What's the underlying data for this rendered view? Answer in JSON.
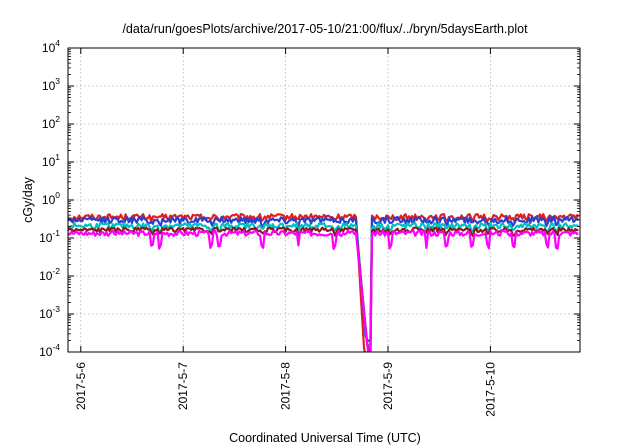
{
  "chart_data": {
    "type": "line",
    "title": "/data/run/goesPlots/archive/2017-05-10/21:00/flux/../bryn/5daysEarth.plot",
    "xlabel": "Coordinated Universal Time (UTC)",
    "ylabel": "cGy/day",
    "y_scale": "log",
    "ylim": [
      0.0001,
      10000
    ],
    "y_ticks": [
      {
        "value": 0.0001,
        "base": "10",
        "exp": "-4"
      },
      {
        "value": 0.001,
        "base": "10",
        "exp": "-3"
      },
      {
        "value": 0.01,
        "base": "10",
        "exp": "-2"
      },
      {
        "value": 0.1,
        "base": "10",
        "exp": "-1"
      },
      {
        "value": 1,
        "base": "10",
        "exp": "0"
      },
      {
        "value": 10,
        "base": "10",
        "exp": "1"
      },
      {
        "value": 100,
        "base": "10",
        "exp": "2"
      },
      {
        "value": 1000,
        "base": "10",
        "exp": "3"
      },
      {
        "value": 10000,
        "base": "10",
        "exp": "4"
      }
    ],
    "xlim": [
      "2017-05-05T21:00",
      "2017-05-10T21:00"
    ],
    "x_ticks": [
      {
        "value": "2017-05-06T00:00",
        "label": "2017-5-6"
      },
      {
        "value": "2017-05-07T00:00",
        "label": "2017-5-7"
      },
      {
        "value": "2017-05-08T00:00",
        "label": "2017-5-8"
      },
      {
        "value": "2017-05-09T00:00",
        "label": "2017-5-9"
      },
      {
        "value": "2017-05-10T00:00",
        "label": "2017-5-10"
      }
    ],
    "grid": true,
    "dropout": {
      "start": "2017-05-08T16:30",
      "end": "2017-05-08T20:00",
      "floor": 0.0001
    },
    "series": [
      {
        "color": "#e02020",
        "base": 0.36,
        "jitter": 0.18,
        "spike_depth": 0.12,
        "min_at_dropout": 5e-05
      },
      {
        "color": "#2b3fcf",
        "base": 0.3,
        "jitter": 0.2,
        "spike_depth": 0.18,
        "min_at_dropout": 0.0002
      },
      {
        "color": "#00c0c0",
        "base": 0.21,
        "jitter": 0.18,
        "spike_depth": 0.25,
        "min_at_dropout": 0.00015
      },
      {
        "color": "#8b1a1a",
        "base": 0.165,
        "jitter": 0.14,
        "spike_depth": 0.2,
        "min_at_dropout": 0.0001
      },
      {
        "color": "#ff00ff",
        "base": 0.135,
        "jitter": 0.16,
        "spike_depth": 0.55,
        "min_at_dropout": 5e-05
      }
    ]
  }
}
